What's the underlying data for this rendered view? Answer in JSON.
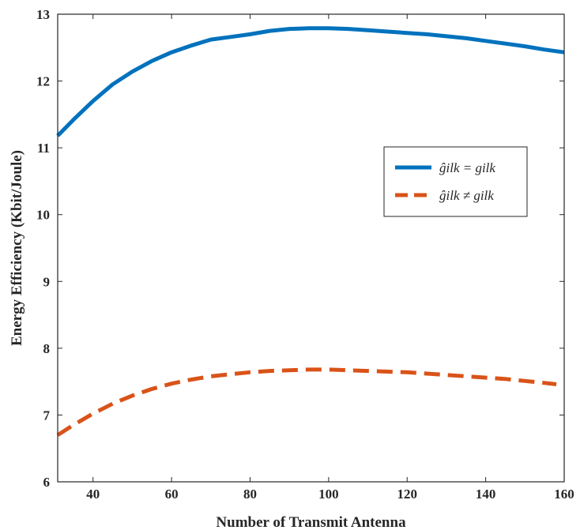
{
  "chart_data": {
    "type": "line",
    "xlabel": "Number of Transmit Antenna",
    "ylabel": "Energy Efficiency (Kbit/Joule)",
    "xlim": [
      31,
      160
    ],
    "ylim": [
      6,
      13
    ],
    "xticks": [
      40,
      60,
      80,
      100,
      120,
      140,
      160
    ],
    "yticks": [
      6,
      7,
      8,
      9,
      10,
      11,
      12,
      13
    ],
    "grid": false,
    "legend_position": "right-middle",
    "series": [
      {
        "name": "ĝilk = gilk",
        "color": "#0072BD",
        "style": "solid",
        "x": [
          31,
          35,
          40,
          45,
          50,
          55,
          60,
          65,
          70,
          75,
          80,
          85,
          90,
          95,
          100,
          105,
          110,
          115,
          120,
          125,
          130,
          135,
          140,
          145,
          150,
          155,
          160
        ],
        "y": [
          11.18,
          11.42,
          11.7,
          11.95,
          12.14,
          12.3,
          12.43,
          12.53,
          12.62,
          12.66,
          12.7,
          12.75,
          12.78,
          12.79,
          12.79,
          12.78,
          12.76,
          12.74,
          12.72,
          12.7,
          12.67,
          12.64,
          12.6,
          12.56,
          12.52,
          12.47,
          12.43
        ]
      },
      {
        "name": "ĝilk ≠ gilk",
        "color": "#D95319",
        "style": "dashed",
        "x": [
          31,
          35,
          40,
          45,
          50,
          55,
          60,
          65,
          70,
          75,
          80,
          85,
          90,
          95,
          100,
          105,
          110,
          115,
          120,
          125,
          130,
          135,
          140,
          145,
          150,
          155,
          158
        ],
        "y": [
          6.7,
          6.85,
          7.02,
          7.17,
          7.29,
          7.39,
          7.47,
          7.53,
          7.58,
          7.61,
          7.64,
          7.66,
          7.67,
          7.68,
          7.68,
          7.67,
          7.66,
          7.65,
          7.64,
          7.62,
          7.6,
          7.58,
          7.56,
          7.54,
          7.51,
          7.48,
          7.46
        ]
      }
    ]
  }
}
